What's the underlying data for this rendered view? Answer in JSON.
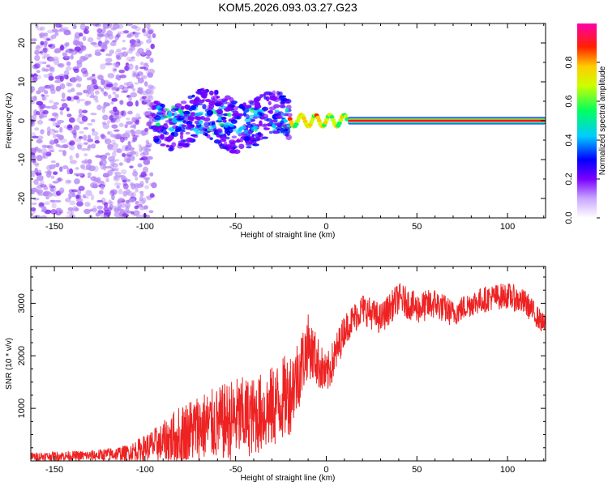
{
  "title": "KOM5.2026.093.03.27.G23",
  "chart_data": [
    {
      "type": "heatmap",
      "name": "spectrogram",
      "xlabel": "Height of straight line (km)",
      "ylabel": "Frequency (Hz)",
      "xlim": [
        -163,
        121
      ],
      "ylim": [
        -25,
        25
      ],
      "xticks": [
        -150,
        -100,
        -50,
        0,
        50,
        100
      ],
      "yticks": [
        -20,
        -10,
        0,
        10,
        20
      ],
      "colorbar": {
        "label": "Normalized spectral amplitude",
        "range": [
          0.0,
          1.0
        ],
        "ticks": [
          0.0,
          0.2,
          0.4,
          0.6,
          0.8
        ],
        "tick_labels": [
          "0.0",
          "0.2",
          "0.4",
          "0.6",
          "0.8"
        ],
        "colors": [
          "#ffffff",
          "#8a2be2",
          "#0000ff",
          "#00ffff",
          "#00ff00",
          "#ffff00",
          "#ff8000",
          "#ff0000",
          "#ff00aa"
        ]
      },
      "features": {
        "noise_region_km": [
          -163,
          -95
        ],
        "scatter_region_km": [
          -95,
          -20
        ],
        "transition_region_km": [
          -20,
          12
        ],
        "carrier_start_km": 12,
        "carrier_frequency_hz": 0,
        "carrier_amplitude": 1.0
      }
    },
    {
      "type": "line",
      "name": "snr",
      "xlabel": "Height of straight line (km)",
      "ylabel": "SNR (10 * v/v)",
      "xlim": [
        -163,
        121
      ],
      "ylim": [
        0,
        3700
      ],
      "xticks": [
        -150,
        -100,
        -50,
        0,
        50,
        100
      ],
      "yticks": [
        1000,
        2000,
        3000
      ],
      "series": [
        {
          "name": "SNR",
          "color": "#ee2222",
          "x": [
            -163,
            -150,
            -130,
            -110,
            -100,
            -90,
            -80,
            -70,
            -60,
            -50,
            -40,
            -30,
            -20,
            -15,
            -10,
            -5,
            0,
            5,
            10,
            15,
            20,
            30,
            40,
            50,
            60,
            70,
            80,
            90,
            100,
            110,
            120
          ],
          "values": [
            80,
            90,
            100,
            150,
            250,
            350,
            500,
            650,
            700,
            800,
            850,
            1000,
            1300,
            1700,
            2200,
            1900,
            1600,
            2000,
            2500,
            2700,
            2900,
            2700,
            3100,
            2900,
            3000,
            2800,
            3000,
            3100,
            3150,
            3000,
            2600
          ],
          "spread": [
            80,
            90,
            100,
            150,
            250,
            400,
            600,
            650,
            700,
            800,
            750,
            800,
            800,
            700,
            600,
            500,
            400,
            400,
            300,
            300,
            300,
            300,
            300,
            300,
            300,
            250,
            250,
            250,
            250,
            250,
            200
          ]
        }
      ]
    }
  ]
}
